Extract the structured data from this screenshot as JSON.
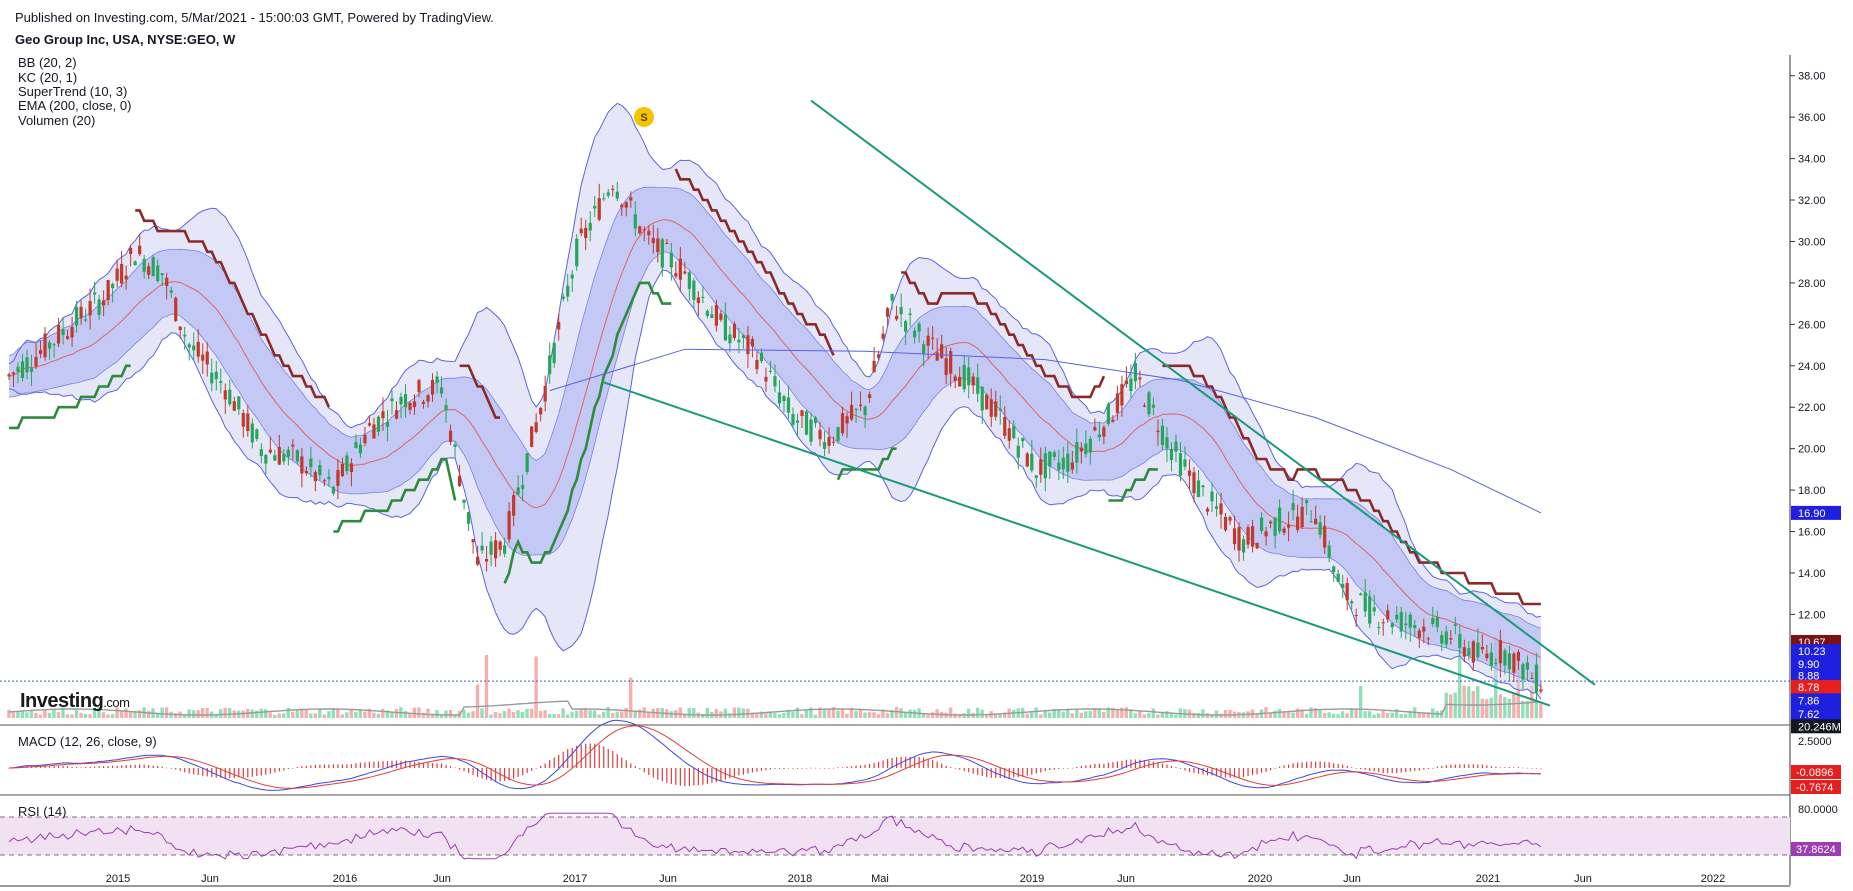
{
  "header": {
    "published": "Published on Investing.com, 5/Mar/2021 - 15:00:03 GMT, Powered by TradingView.",
    "symbol": "Geo Group Inc, USA, NYSE:GEO, W"
  },
  "indicators": [
    "BB (20, 2)",
    "KC (20, 1)",
    "SuperTrend (10, 3)",
    "EMA (200, close, 0)",
    "Volumen (20)"
  ],
  "logo": {
    "main": "Investing",
    "suffix": ".com"
  },
  "marker_label": "S",
  "colors": {
    "up": "#26a65b",
    "down": "#c0392b",
    "band_fill": "#cfd3f2",
    "band_line": "#5b63e0",
    "supertrend_up": "#2e8b3e",
    "supertrend_down": "#8b2a2a",
    "trendline": "#1a9a7a",
    "ema": "#5b63e0",
    "rsi_fill": "#f2e1f2",
    "rsi_line": "#9b3fb0"
  },
  "chart_data": {
    "type": "candlestick",
    "x_ticks": [
      "2015",
      "Jun",
      "2016",
      "Jun",
      "2017",
      "Jun",
      "2018",
      "Mai",
      "2019",
      "Jun",
      "2020",
      "Jun",
      "2021",
      "Jun",
      "2022"
    ],
    "y_ticks": [
      "38.00",
      "36.00",
      "34.00",
      "32.00",
      "30.00",
      "28.00",
      "26.00",
      "24.00",
      "22.00",
      "20.00",
      "18.00",
      "16.00",
      "14.00",
      "12.00"
    ],
    "ylim": [
      7.0,
      39.0
    ],
    "close_path": [
      {
        "t": 0,
        "v": 23.5
      },
      {
        "t": 6,
        "v": 24.5
      },
      {
        "t": 14,
        "v": 26.0
      },
      {
        "t": 22,
        "v": 27.5
      },
      {
        "t": 28,
        "v": 29.5
      },
      {
        "t": 34,
        "v": 28.5
      },
      {
        "t": 40,
        "v": 25.0
      },
      {
        "t": 48,
        "v": 23.0
      },
      {
        "t": 56,
        "v": 20.0
      },
      {
        "t": 64,
        "v": 19.5
      },
      {
        "t": 72,
        "v": 18.0
      },
      {
        "t": 80,
        "v": 21.0
      },
      {
        "t": 88,
        "v": 22.5
      },
      {
        "t": 96,
        "v": 23.0
      },
      {
        "t": 104,
        "v": 14.5
      },
      {
        "t": 110,
        "v": 15.5
      },
      {
        "t": 118,
        "v": 22.0
      },
      {
        "t": 126,
        "v": 29.5
      },
      {
        "t": 134,
        "v": 33.0
      },
      {
        "t": 142,
        "v": 30.0
      },
      {
        "t": 150,
        "v": 28.5
      },
      {
        "t": 158,
        "v": 26.0
      },
      {
        "t": 166,
        "v": 24.5
      },
      {
        "t": 174,
        "v": 21.5
      },
      {
        "t": 182,
        "v": 20.5
      },
      {
        "t": 190,
        "v": 22.0
      },
      {
        "t": 196,
        "v": 27.0
      },
      {
        "t": 204,
        "v": 25.0
      },
      {
        "t": 212,
        "v": 23.5
      },
      {
        "t": 220,
        "v": 21.5
      },
      {
        "t": 228,
        "v": 19.0
      },
      {
        "t": 236,
        "v": 19.5
      },
      {
        "t": 244,
        "v": 21.5
      },
      {
        "t": 250,
        "v": 23.5
      },
      {
        "t": 258,
        "v": 20.0
      },
      {
        "t": 266,
        "v": 17.5
      },
      {
        "t": 274,
        "v": 15.5
      },
      {
        "t": 282,
        "v": 16.5
      },
      {
        "t": 290,
        "v": 17.0
      },
      {
        "t": 296,
        "v": 13.0
      },
      {
        "t": 304,
        "v": 12.0
      },
      {
        "t": 312,
        "v": 11.5
      },
      {
        "t": 320,
        "v": 11.0
      },
      {
        "t": 326,
        "v": 10.0
      },
      {
        "t": 332,
        "v": 10.2
      },
      {
        "t": 338,
        "v": 9.0
      },
      {
        "t": 340,
        "v": 8.78
      }
    ],
    "ema200_path": [
      {
        "t": 120,
        "v": 22.8
      },
      {
        "t": 150,
        "v": 24.8
      },
      {
        "t": 190,
        "v": 24.7
      },
      {
        "t": 230,
        "v": 24.3
      },
      {
        "t": 260,
        "v": 23.3
      },
      {
        "t": 290,
        "v": 21.5
      },
      {
        "t": 320,
        "v": 19.0
      },
      {
        "t": 340,
        "v": 16.9
      }
    ],
    "trendlines": [
      {
        "from": {
          "t": 178,
          "v": 36.8
        },
        "to": {
          "t": 352,
          "v": 8.6
        }
      },
      {
        "from": {
          "t": 132,
          "v": 23.2
        },
        "to": {
          "t": 342,
          "v": 7.6
        }
      }
    ],
    "price_labels": [
      {
        "text": "16.90",
        "v": 16.9,
        "color": "#1f1fe0"
      },
      {
        "text": "10.67",
        "v": 10.67,
        "color": "#7a1414"
      },
      {
        "text": "10.23",
        "v": 10.23,
        "color": "#1f1fe0"
      },
      {
        "text": "9.90",
        "v": 9.6,
        "color": "#1f1fe0"
      },
      {
        "text": "8.88",
        "v": 9.05,
        "color": "#1f1fe0"
      },
      {
        "text": "8.78",
        "v": 8.5,
        "color": "#e61e1e"
      },
      {
        "text": "7.86",
        "v": 7.85,
        "color": "#1f1fe0"
      },
      {
        "text": "7.62",
        "v": 7.2,
        "color": "#1f1fe0"
      },
      {
        "text": "20.246M",
        "v": 6.6,
        "color": "#131722"
      }
    ],
    "current_price": 8.78,
    "macd": {
      "label": "MACD (12, 26, close, 9)",
      "y_ticks": [
        "2.5000"
      ],
      "values": [
        {
          "text": "-0.0896",
          "color": "#e61e1e"
        },
        {
          "text": "-0.7674",
          "color": "#e61e1e"
        }
      ]
    },
    "rsi": {
      "label": "RSI (14)",
      "y_ticks": [
        "80.0000"
      ],
      "value": {
        "text": "37.8624",
        "color": "#9b3fb0"
      }
    }
  }
}
